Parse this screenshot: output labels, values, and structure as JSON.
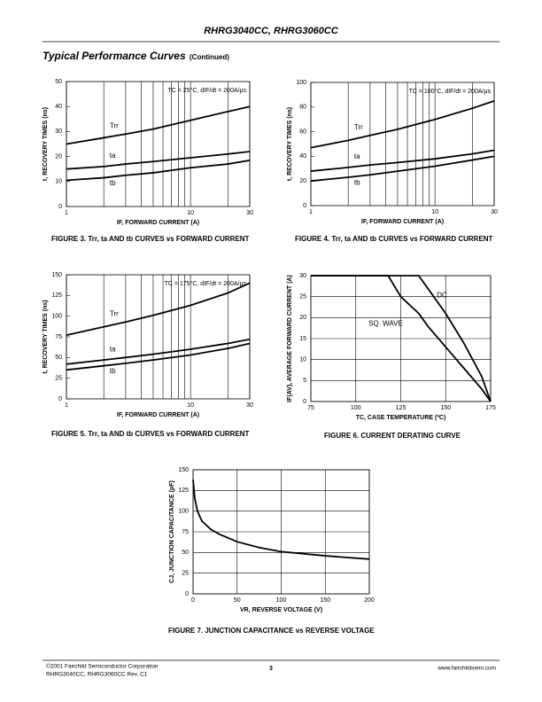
{
  "header": {
    "title": "RHRG3040CC, RHRG3060CC"
  },
  "section": {
    "title": "Typical Performance Curves",
    "note": "(Continued)"
  },
  "footer": {
    "copyright": "©2001 Fairchild Semiconductor Corporation",
    "revision": "RHRG3040CC, RHRG3060CC Rev. C1",
    "page": "3",
    "url": "www.fairchildsemi.com"
  },
  "chart_data": [
    {
      "type": "line",
      "caption": "FIGURE 3. Trr, ta AND tb CURVES vs FORWARD CURRENT",
      "annotation": "TC = 25°C, dIF/dt = 200A/µs",
      "x_label": "IF, FORWARD CURRENT (A)",
      "y_label": "t, RECOVERY TIMES (ns)",
      "x_log": true,
      "grid": "x",
      "x": [
        1,
        2,
        3,
        5,
        10,
        20,
        30
      ],
      "series": [
        {
          "name": "Trr",
          "color": "#000000",
          "values": [
            25,
            27.5,
            29,
            31,
            34.5,
            38,
            40
          ]
        },
        {
          "name": "ta",
          "color": "#000000",
          "values": [
            15,
            16,
            17,
            18,
            19.5,
            21,
            22
          ]
        },
        {
          "name": "tb",
          "color": "#000000",
          "values": [
            10.5,
            11.5,
            12.5,
            13.5,
            15.5,
            17,
            18.5
          ]
        }
      ],
      "xlim": [
        1,
        30
      ],
      "xticks": [
        1,
        10,
        30
      ],
      "x_minor_ticks": [
        2,
        3,
        4,
        5,
        6,
        7,
        8,
        9,
        20
      ],
      "ylim": [
        0,
        50
      ],
      "yticks": [
        0,
        10,
        20,
        30,
        40,
        50
      ]
    },
    {
      "type": "line",
      "caption": "FIGURE 4. Trr, ta AND tb CURVES vs FORWARD CURRENT",
      "annotation": "TC = 100°C, dIF/dt = 200A/µs",
      "x_label": "IF, FORWARD CURRENT (A)",
      "y_label": "t, RECOVERY TIMES (ns)",
      "x_log": true,
      "grid": "x",
      "x": [
        1,
        2,
        3,
        5,
        10,
        20,
        30
      ],
      "series": [
        {
          "name": "Trr",
          "color": "#000000",
          "values": [
            47,
            53,
            57,
            62,
            70,
            79,
            85
          ]
        },
        {
          "name": "ta",
          "color": "#000000",
          "values": [
            28,
            31,
            33,
            35,
            38,
            42,
            45
          ]
        },
        {
          "name": "tb",
          "color": "#000000",
          "values": [
            20,
            23,
            25,
            28,
            32,
            37,
            40
          ]
        }
      ],
      "xlim": [
        1,
        30
      ],
      "xticks": [
        1,
        10,
        30
      ],
      "x_minor_ticks": [
        2,
        3,
        4,
        5,
        6,
        7,
        8,
        9,
        20
      ],
      "ylim": [
        0,
        100
      ],
      "yticks": [
        0,
        20,
        40,
        60,
        80,
        100
      ]
    },
    {
      "type": "line",
      "caption": "FIGURE 5. Trr, ta AND tb CURVES vs FORWARD CURRENT",
      "annotation": "TC = 175°C, dIF/dt = 200A/µs",
      "x_label": "IF, FORWARD CURRENT (A)",
      "y_label": "t, RECOVERY TIMES (ns)",
      "x_log": true,
      "grid": "x",
      "x": [
        1,
        2,
        3,
        5,
        10,
        20,
        30
      ],
      "series": [
        {
          "name": "Trr",
          "color": "#000000",
          "values": [
            77,
            87,
            93,
            101,
            113,
            128,
            140
          ]
        },
        {
          "name": "ta",
          "color": "#000000",
          "values": [
            42,
            47,
            50,
            54,
            60,
            67,
            72
          ]
        },
        {
          "name": "tb",
          "color": "#000000",
          "values": [
            35,
            40,
            43,
            47,
            53,
            61,
            67
          ]
        }
      ],
      "xlim": [
        1,
        30
      ],
      "xticks": [
        1,
        10,
        30
      ],
      "x_minor_ticks": [
        2,
        3,
        4,
        5,
        6,
        7,
        8,
        9,
        20
      ],
      "ylim": [
        0,
        150
      ],
      "yticks": [
        0,
        25,
        50,
        75,
        100,
        125,
        150
      ]
    },
    {
      "type": "line",
      "caption": "FIGURE 6. CURRENT DERATING CURVE",
      "x_label": "TC, CASE TEMPERATURE (ºC)",
      "y_label": "IF(AV), AVERAGE FORWARD CURRENT (A)",
      "x_log": false,
      "grid": "both",
      "x": [
        75,
        118,
        125,
        135,
        140,
        150,
        160,
        170,
        175
      ],
      "series": [
        {
          "name": "DC",
          "color": "#000000",
          "values": [
            30,
            30,
            30,
            30,
            27,
            21,
            14,
            6,
            0
          ]
        },
        {
          "name": "SQ. WAVE",
          "color": "#000000",
          "values": [
            30,
            30,
            25,
            21,
            18,
            13,
            8,
            3,
            0
          ]
        }
      ],
      "xlim": [
        75,
        175
      ],
      "xticks": [
        75,
        100,
        125,
        150,
        175
      ],
      "ylim": [
        0,
        30
      ],
      "yticks": [
        0,
        5,
        10,
        15,
        20,
        25,
        30
      ]
    },
    {
      "type": "line",
      "caption": "FIGURE 7. JUNCTION CAPACITANCE vs REVERSE VOLTAGE",
      "x_label": "VR, REVERSE VOLTAGE (V)",
      "y_label": "CJ, JUNCTION CAPACITANCE (pF)",
      "x_log": false,
      "grid": "both",
      "x": [
        0,
        2,
        5,
        10,
        20,
        30,
        50,
        75,
        100,
        150,
        200
      ],
      "values": [
        138,
        115,
        100,
        88,
        78,
        72,
        63,
        56,
        51,
        46,
        42
      ],
      "color": "#000000",
      "xlim": [
        0,
        200
      ],
      "xticks": [
        0,
        50,
        100,
        150,
        200
      ],
      "ylim": [
        0,
        150
      ],
      "yticks": [
        0,
        25,
        50,
        75,
        100,
        125,
        150
      ]
    }
  ]
}
